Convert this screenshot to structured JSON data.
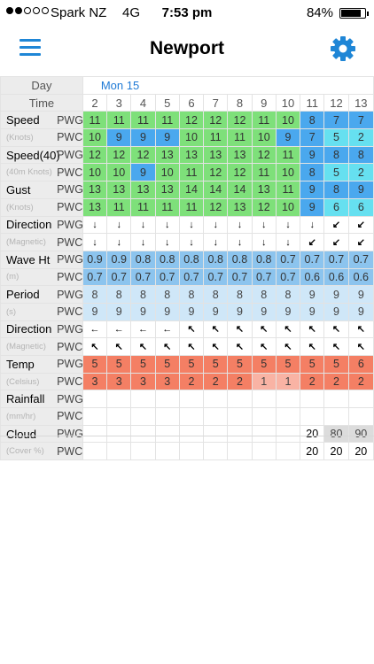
{
  "status_bar": {
    "carrier": "Spark NZ",
    "network": "4G",
    "time": "7:53 pm",
    "battery": "84%"
  },
  "nav": {
    "title": "Newport",
    "menu_icon": "hamburger-menu-icon",
    "settings_icon": "gear-icon"
  },
  "header": {
    "day_label": "Day",
    "time_label": "Time",
    "day": "Mon 15",
    "times": [
      "2",
      "3",
      "4",
      "5",
      "6",
      "7",
      "8",
      "9",
      "10",
      "11",
      "12",
      "13"
    ]
  },
  "colors": {
    "accent": "#1f86d6",
    "wind_green": "#7ee07a",
    "wind_blue": "#4aa8ee",
    "wind_cyan": "#66e0f0",
    "wave_blue": "#8cc4ee",
    "wave_light": "#cfe7f8",
    "temp_red": "#f47f64",
    "temp_pink": "#f9b3a4"
  },
  "rows": [
    {
      "label": "Speed",
      "model": "PWG",
      "cells": [
        [
          "11",
          "g"
        ],
        [
          "11",
          "g"
        ],
        [
          "11",
          "g"
        ],
        [
          "11",
          "g"
        ],
        [
          "12",
          "g"
        ],
        [
          "12",
          "g"
        ],
        [
          "12",
          "g"
        ],
        [
          "11",
          "g"
        ],
        [
          "10",
          "g"
        ],
        [
          "8",
          "b"
        ],
        [
          "7",
          "b"
        ],
        [
          "7",
          "b"
        ]
      ]
    },
    {
      "label": "(Knots)",
      "model": "PWC",
      "cells": [
        [
          "10",
          "g"
        ],
        [
          "9",
          "b"
        ],
        [
          "9",
          "b"
        ],
        [
          "9",
          "b"
        ],
        [
          "10",
          "g"
        ],
        [
          "11",
          "g"
        ],
        [
          "11",
          "g"
        ],
        [
          "10",
          "g"
        ],
        [
          "9",
          "b"
        ],
        [
          "7",
          "b"
        ],
        [
          "5",
          "c"
        ],
        [
          "2",
          "c"
        ]
      ]
    },
    {
      "label": "Speed(40)",
      "model": "PWG",
      "cells": [
        [
          "12",
          "g"
        ],
        [
          "12",
          "g"
        ],
        [
          "12",
          "g"
        ],
        [
          "13",
          "g"
        ],
        [
          "13",
          "g"
        ],
        [
          "13",
          "g"
        ],
        [
          "13",
          "g"
        ],
        [
          "12",
          "g"
        ],
        [
          "11",
          "g"
        ],
        [
          "9",
          "b"
        ],
        [
          "8",
          "b"
        ],
        [
          "8",
          "b"
        ]
      ]
    },
    {
      "label": "(40m Knots)",
      "model": "PWC",
      "cells": [
        [
          "10",
          "g"
        ],
        [
          "10",
          "g"
        ],
        [
          "9",
          "b"
        ],
        [
          "10",
          "g"
        ],
        [
          "11",
          "g"
        ],
        [
          "12",
          "g"
        ],
        [
          "12",
          "g"
        ],
        [
          "11",
          "g"
        ],
        [
          "10",
          "g"
        ],
        [
          "8",
          "b"
        ],
        [
          "5",
          "c"
        ],
        [
          "2",
          "c"
        ]
      ]
    },
    {
      "label": "Gust",
      "model": "PWG",
      "cells": [
        [
          "13",
          "g"
        ],
        [
          "13",
          "g"
        ],
        [
          "13",
          "g"
        ],
        [
          "13",
          "g"
        ],
        [
          "14",
          "g"
        ],
        [
          "14",
          "g"
        ],
        [
          "14",
          "g"
        ],
        [
          "13",
          "g"
        ],
        [
          "11",
          "g"
        ],
        [
          "9",
          "b"
        ],
        [
          "8",
          "b"
        ],
        [
          "9",
          "b"
        ]
      ]
    },
    {
      "label": "(Knots)",
      "model": "PWC",
      "cells": [
        [
          "13",
          "g"
        ],
        [
          "11",
          "g"
        ],
        [
          "11",
          "g"
        ],
        [
          "11",
          "g"
        ],
        [
          "11",
          "g"
        ],
        [
          "12",
          "g"
        ],
        [
          "13",
          "g"
        ],
        [
          "12",
          "g"
        ],
        [
          "10",
          "g"
        ],
        [
          "9",
          "b"
        ],
        [
          "6",
          "c"
        ],
        [
          "6",
          "c"
        ]
      ]
    },
    {
      "label": "Direction",
      "model": "PWG",
      "cells": [
        [
          "↓",
          "w"
        ],
        [
          "↓",
          "w"
        ],
        [
          "↓",
          "w"
        ],
        [
          "↓",
          "w"
        ],
        [
          "↓",
          "w"
        ],
        [
          "↓",
          "w"
        ],
        [
          "↓",
          "w"
        ],
        [
          "↓",
          "w"
        ],
        [
          "↓",
          "w"
        ],
        [
          "↓",
          "w"
        ],
        [
          "↙",
          "w"
        ],
        [
          "↙",
          "w"
        ]
      ]
    },
    {
      "label": "(Magnetic)",
      "model": "PWC",
      "cells": [
        [
          "↓",
          "w"
        ],
        [
          "↓",
          "w"
        ],
        [
          "↓",
          "w"
        ],
        [
          "↓",
          "w"
        ],
        [
          "↓",
          "w"
        ],
        [
          "↓",
          "w"
        ],
        [
          "↓",
          "w"
        ],
        [
          "↓",
          "w"
        ],
        [
          "↓",
          "w"
        ],
        [
          "↙",
          "w"
        ],
        [
          "↙",
          "w"
        ],
        [
          "↙",
          "w"
        ]
      ]
    },
    {
      "label": "Wave Ht",
      "model": "PWG",
      "cells": [
        [
          "0.9",
          "v"
        ],
        [
          "0.9",
          "v"
        ],
        [
          "0.8",
          "v"
        ],
        [
          "0.8",
          "v"
        ],
        [
          "0.8",
          "v"
        ],
        [
          "0.8",
          "v"
        ],
        [
          "0.8",
          "v"
        ],
        [
          "0.8",
          "v"
        ],
        [
          "0.7",
          "v"
        ],
        [
          "0.7",
          "v"
        ],
        [
          "0.7",
          "v"
        ],
        [
          "0.7",
          "v"
        ]
      ]
    },
    {
      "label": "(m)",
      "model": "PWC",
      "cells": [
        [
          "0.7",
          "v"
        ],
        [
          "0.7",
          "v"
        ],
        [
          "0.7",
          "v"
        ],
        [
          "0.7",
          "v"
        ],
        [
          "0.7",
          "v"
        ],
        [
          "0.7",
          "v"
        ],
        [
          "0.7",
          "v"
        ],
        [
          "0.7",
          "v"
        ],
        [
          "0.7",
          "v"
        ],
        [
          "0.6",
          "v"
        ],
        [
          "0.6",
          "v"
        ],
        [
          "0.6",
          "v"
        ]
      ]
    },
    {
      "label": "Period",
      "model": "PWG",
      "cells": [
        [
          "8",
          "l"
        ],
        [
          "8",
          "l"
        ],
        [
          "8",
          "l"
        ],
        [
          "8",
          "l"
        ],
        [
          "8",
          "l"
        ],
        [
          "8",
          "l"
        ],
        [
          "8",
          "l"
        ],
        [
          "8",
          "l"
        ],
        [
          "8",
          "l"
        ],
        [
          "9",
          "l"
        ],
        [
          "9",
          "l"
        ],
        [
          "9",
          "l"
        ]
      ]
    },
    {
      "label": "(s)",
      "model": "PWC",
      "cells": [
        [
          "9",
          "l"
        ],
        [
          "9",
          "l"
        ],
        [
          "9",
          "l"
        ],
        [
          "9",
          "l"
        ],
        [
          "9",
          "l"
        ],
        [
          "9",
          "l"
        ],
        [
          "9",
          "l"
        ],
        [
          "9",
          "l"
        ],
        [
          "9",
          "l"
        ],
        [
          "9",
          "l"
        ],
        [
          "9",
          "l"
        ],
        [
          "9",
          "l"
        ]
      ]
    },
    {
      "label": "Direction",
      "model": "PWG",
      "cells": [
        [
          "←",
          "w"
        ],
        [
          "←",
          "w"
        ],
        [
          "←",
          "w"
        ],
        [
          "←",
          "w"
        ],
        [
          "↖",
          "w"
        ],
        [
          "↖",
          "w"
        ],
        [
          "↖",
          "w"
        ],
        [
          "↖",
          "w"
        ],
        [
          "↖",
          "w"
        ],
        [
          "↖",
          "w"
        ],
        [
          "↖",
          "w"
        ],
        [
          "↖",
          "w"
        ]
      ]
    },
    {
      "label": "(Magnetic)",
      "model": "PWC",
      "cells": [
        [
          "↖",
          "w"
        ],
        [
          "↖",
          "w"
        ],
        [
          "↖",
          "w"
        ],
        [
          "↖",
          "w"
        ],
        [
          "↖",
          "w"
        ],
        [
          "↖",
          "w"
        ],
        [
          "↖",
          "w"
        ],
        [
          "↖",
          "w"
        ],
        [
          "↖",
          "w"
        ],
        [
          "↖",
          "w"
        ],
        [
          "↖",
          "w"
        ],
        [
          "↖",
          "w"
        ]
      ]
    },
    {
      "label": "Temp",
      "model": "PWG",
      "cells": [
        [
          "5",
          "r"
        ],
        [
          "5",
          "r"
        ],
        [
          "5",
          "r"
        ],
        [
          "5",
          "r"
        ],
        [
          "5",
          "r"
        ],
        [
          "5",
          "r"
        ],
        [
          "5",
          "r"
        ],
        [
          "5",
          "r"
        ],
        [
          "5",
          "r"
        ],
        [
          "5",
          "r"
        ],
        [
          "5",
          "r"
        ],
        [
          "6",
          "r"
        ]
      ]
    },
    {
      "label": "(Celsius)",
      "model": "PWC",
      "cells": [
        [
          "3",
          "r"
        ],
        [
          "3",
          "r"
        ],
        [
          "3",
          "r"
        ],
        [
          "3",
          "r"
        ],
        [
          "2",
          "r"
        ],
        [
          "2",
          "r"
        ],
        [
          "2",
          "r"
        ],
        [
          "1",
          "p"
        ],
        [
          "1",
          "p"
        ],
        [
          "2",
          "r"
        ],
        [
          "2",
          "r"
        ],
        [
          "2",
          "r"
        ]
      ]
    },
    {
      "label": "Rainfall",
      "model": "PWG",
      "cells": [
        [
          "",
          "w"
        ],
        [
          "",
          "w"
        ],
        [
          "",
          "w"
        ],
        [
          "",
          "w"
        ],
        [
          "",
          "w"
        ],
        [
          "",
          "w"
        ],
        [
          "",
          "w"
        ],
        [
          "",
          "w"
        ],
        [
          "",
          "w"
        ],
        [
          "",
          "w"
        ],
        [
          "",
          "w"
        ],
        [
          "",
          "w"
        ]
      ]
    },
    {
      "label": "(mm/hr)",
      "model": "PWC",
      "cells": [
        [
          "",
          "w"
        ],
        [
          "",
          "w"
        ],
        [
          "",
          "w"
        ],
        [
          "",
          "w"
        ],
        [
          "",
          "w"
        ],
        [
          "",
          "w"
        ],
        [
          "",
          "w"
        ],
        [
          "",
          "w"
        ],
        [
          "",
          "w"
        ],
        [
          "",
          "w"
        ],
        [
          "",
          "w"
        ],
        [
          "",
          "w"
        ]
      ]
    },
    {
      "label": "Cloud",
      "model": "PWG",
      "cells": [
        [
          "",
          "w"
        ],
        [
          "",
          "w"
        ],
        [
          "",
          "w"
        ],
        [
          "",
          "w"
        ],
        [
          "",
          "w"
        ],
        [
          "",
          "w"
        ],
        [
          "",
          "w"
        ],
        [
          "",
          "w"
        ],
        [
          "",
          "w"
        ],
        [
          "20",
          "w"
        ],
        [
          "80",
          "k"
        ],
        [
          "90",
          "k"
        ]
      ]
    },
    {
      "label": "(Cover %)",
      "model": "PWC",
      "cells": [
        [
          "",
          "w"
        ],
        [
          "",
          "w"
        ],
        [
          "",
          "w"
        ],
        [
          "",
          "w"
        ],
        [
          "",
          "w"
        ],
        [
          "",
          "w"
        ],
        [
          "",
          "w"
        ],
        [
          "",
          "w"
        ],
        [
          "",
          "w"
        ],
        [
          "20",
          "w"
        ],
        [
          "20",
          "w"
        ],
        [
          "20",
          "w"
        ]
      ]
    }
  ]
}
